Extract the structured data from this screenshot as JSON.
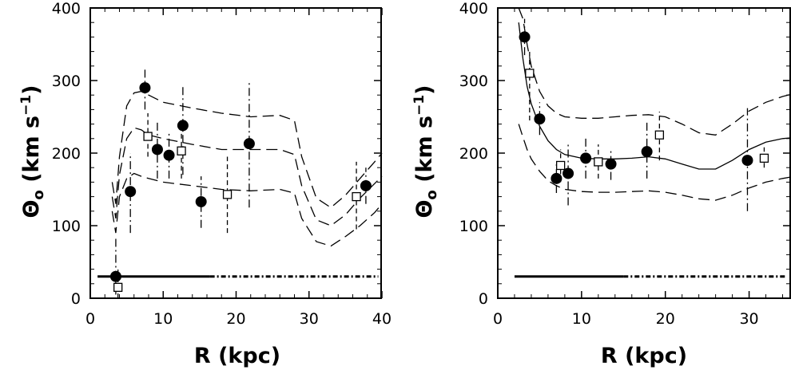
{
  "chart_data": [
    {
      "type": "scatter",
      "title": "",
      "xlabel": "R (kpc)",
      "ylabel_main": "Θ",
      "ylabel_sub": "o",
      "ylabel_unit": "(km s",
      "ylabel_exp": "−1",
      "ylabel_close": ")",
      "xlim": [
        0,
        40
      ],
      "ylim": [
        0,
        400
      ],
      "xticks": [
        "0",
        "10",
        "20",
        "30",
        "40"
      ],
      "yticks": [
        "0",
        "100",
        "200",
        "300",
        "400"
      ],
      "grid": false,
      "series": [
        {
          "marker": "filled-circle",
          "points": [
            {
              "x": 3.5,
              "y": 30,
              "lo": 5,
              "hi": 85
            },
            {
              "x": 5.5,
              "y": 147,
              "lo": 90,
              "hi": 200
            },
            {
              "x": 7.5,
              "y": 290,
              "lo": 260,
              "hi": 315
            },
            {
              "x": 9.2,
              "y": 205,
              "lo": 165,
              "hi": 245
            },
            {
              "x": 10.8,
              "y": 197,
              "lo": 165,
              "hi": 230
            },
            {
              "x": 12.7,
              "y": 238,
              "lo": 170,
              "hi": 295
            },
            {
              "x": 15.2,
              "y": 133,
              "lo": 97,
              "hi": 168
            },
            {
              "x": 21.8,
              "y": 213,
              "lo": 125,
              "hi": 300
            },
            {
              "x": 37.8,
              "y": 155,
              "lo": 130,
              "hi": 180
            }
          ]
        },
        {
          "marker": "open-square",
          "points": [
            {
              "x": 3.8,
              "y": 15,
              "lo": 0,
              "hi": 40
            },
            {
              "x": 7.9,
              "y": 223,
              "lo": 195,
              "hi": 255
            },
            {
              "x": 12.5,
              "y": 203,
              "lo": 165,
              "hi": 240
            },
            {
              "x": 18.8,
              "y": 143,
              "lo": 90,
              "hi": 195
            },
            {
              "x": 36.5,
              "y": 140,
              "lo": 95,
              "hi": 188
            }
          ]
        }
      ],
      "curves": [
        {
          "style": "long-dash",
          "x": [
            3,
            3.5,
            4,
            5,
            6,
            7,
            8,
            10,
            14,
            18,
            22,
            26,
            28,
            29,
            31,
            33,
            35,
            37,
            39,
            40
          ],
          "y": [
            160,
            130,
            195,
            265,
            283,
            285,
            280,
            270,
            262,
            255,
            250,
            252,
            245,
            195,
            138,
            125,
            142,
            165,
            188,
            200
          ]
        },
        {
          "style": "long-dash",
          "x": [
            3,
            3.5,
            4,
            5,
            6,
            7,
            8,
            10,
            14,
            18,
            22,
            26,
            28,
            29,
            31,
            33,
            35,
            37,
            39,
            40
          ],
          "y": [
            140,
            110,
            170,
            220,
            235,
            232,
            225,
            220,
            212,
            205,
            205,
            205,
            198,
            155,
            108,
            100,
            115,
            138,
            158,
            168
          ]
        },
        {
          "style": "long-dash",
          "x": [
            3,
            3.5,
            4,
            5,
            6,
            7,
            8,
            10,
            14,
            18,
            22,
            26,
            28,
            29,
            31,
            33,
            35,
            37,
            39,
            40
          ],
          "y": [
            120,
            90,
            140,
            165,
            172,
            168,
            165,
            160,
            155,
            150,
            148,
            150,
            145,
            110,
            78,
            72,
            85,
            100,
            118,
            130
          ]
        }
      ],
      "points_track": {
        "y": 30,
        "x_start": 1,
        "x_end": 39.5
      }
    },
    {
      "type": "scatter",
      "title": "",
      "xlabel": "R (kpc)",
      "ylabel_main": "Θ",
      "ylabel_sub": "o",
      "ylabel_unit": "(km s",
      "ylabel_exp": "−1",
      "ylabel_close": ")",
      "xlim": [
        0,
        35
      ],
      "ylim": [
        0,
        400
      ],
      "xticks": [
        "0",
        "10",
        "20",
        "30"
      ],
      "yticks": [
        "0",
        "100",
        "200",
        "300",
        "400"
      ],
      "grid": false,
      "series": [
        {
          "marker": "filled-circle",
          "points": [
            {
              "x": 3.2,
              "y": 360,
              "lo": 335,
              "hi": 385
            },
            {
              "x": 5.0,
              "y": 247,
              "lo": 225,
              "hi": 270
            },
            {
              "x": 7.0,
              "y": 165,
              "lo": 145,
              "hi": 185
            },
            {
              "x": 8.4,
              "y": 172,
              "lo": 128,
              "hi": 215
            },
            {
              "x": 10.5,
              "y": 193,
              "lo": 165,
              "hi": 220
            },
            {
              "x": 13.5,
              "y": 185,
              "lo": 163,
              "hi": 205
            },
            {
              "x": 17.8,
              "y": 202,
              "lo": 165,
              "hi": 243
            },
            {
              "x": 29.8,
              "y": 190,
              "lo": 120,
              "hi": 262
            }
          ]
        },
        {
          "marker": "open-square",
          "points": [
            {
              "x": 3.8,
              "y": 310,
              "lo": 245,
              "hi": 340
            },
            {
              "x": 7.5,
              "y": 183,
              "lo": 160,
              "hi": 205
            },
            {
              "x": 12.0,
              "y": 188,
              "lo": 165,
              "hi": 212
            },
            {
              "x": 19.3,
              "y": 225,
              "lo": 190,
              "hi": 257
            },
            {
              "x": 31.8,
              "y": 193,
              "lo": 180,
              "hi": 208
            }
          ]
        }
      ],
      "curves": [
        {
          "style": "solid",
          "x": [
            2.5,
            3,
            3.5,
            4,
            5,
            6,
            7,
            8,
            10,
            12,
            14,
            16,
            18,
            20,
            22,
            24,
            26,
            28,
            30,
            32,
            34,
            35
          ],
          "y": [
            380,
            330,
            292,
            268,
            237,
            217,
            205,
            198,
            193,
            192,
            192,
            193,
            195,
            192,
            185,
            178,
            178,
            190,
            205,
            215,
            220,
            221
          ]
        },
        {
          "style": "long-dash",
          "x": [
            2.5,
            3,
            3.5,
            4,
            5,
            6,
            7,
            8,
            10,
            12,
            14,
            16,
            18,
            20,
            22,
            24,
            26,
            28,
            30,
            32,
            34,
            35
          ],
          "y": [
            400,
            385,
            350,
            320,
            285,
            265,
            255,
            250,
            248,
            248,
            250,
            252,
            253,
            250,
            240,
            228,
            225,
            240,
            258,
            270,
            278,
            281
          ]
        },
        {
          "style": "long-dash",
          "x": [
            2.5,
            3,
            3.5,
            4,
            5,
            6,
            7,
            8,
            10,
            12,
            14,
            16,
            18,
            20,
            22,
            24,
            26,
            28,
            30,
            32,
            34,
            35
          ],
          "y": [
            240,
            222,
            205,
            192,
            175,
            162,
            155,
            150,
            147,
            146,
            146,
            147,
            148,
            146,
            142,
            137,
            135,
            142,
            152,
            160,
            165,
            167
          ]
        }
      ],
      "points_track": {
        "y": 30,
        "x_start": 2,
        "x_end": 34.5
      }
    }
  ]
}
